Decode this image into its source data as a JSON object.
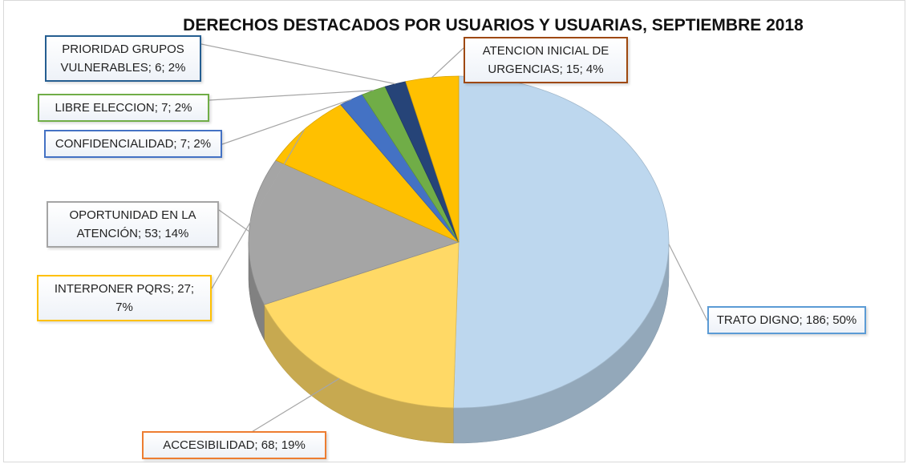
{
  "chart_data": {
    "type": "pie",
    "title": "DERECHOS DESTACADOS POR USUARIOS Y USUARIAS, SEPTIEMBRE 2018",
    "values": [
      186,
      68,
      53,
      27,
      7,
      7,
      6,
      15
    ],
    "value_labels": [
      "TRATO DIGNO; 186; 50%",
      "ACCESIBILIDAD; 68; 19%",
      "OPORTUNIDAD EN LA ATENCIÓN; 53; 14%",
      "INTERPONER PQRS; 27; 7%",
      "CONFIDENCIALIDAD; 7; 2%",
      "LIBRE ELECCION; 7; 2%",
      "PRIORIDAD GRUPOS VULNERABLES; 6; 2%",
      "ATENCION INICIAL DE URGENCIAS; 15; 4%"
    ],
    "colors": [
      "#bdd7ee",
      "#ffd966",
      "#a5a5a5",
      "#ffc000",
      "#4472c4",
      "#70ad47",
      "#264478",
      "#ffc000"
    ],
    "label_border_colors": [
      "#5b9bd5",
      "#ed7d31",
      "#a5a5a5",
      "#ffc000",
      "#4472c4",
      "#70ad47",
      "#255e91",
      "#9e480e"
    ]
  }
}
